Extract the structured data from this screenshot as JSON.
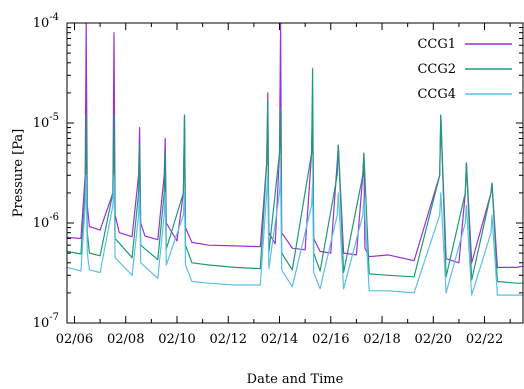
{
  "chart_data": {
    "type": "line",
    "title": "",
    "xlabel": "Date and Time",
    "ylabel": "Pressure [Pa]",
    "y_scale": "log",
    "ylim": [
      1e-07,
      0.0001
    ],
    "xlim": [
      "02/05 17:00",
      "02/23 12:00"
    ],
    "x_tick_labels": [
      "02/06",
      "02/08",
      "02/10",
      "02/12",
      "02/14",
      "02/16",
      "02/18",
      "02/20",
      "02/22"
    ],
    "y_tick_labels": [
      {
        "base": "10",
        "exp": "-7",
        "value": 1e-07
      },
      {
        "base": "10",
        "exp": "-6",
        "value": 1e-06
      },
      {
        "base": "10",
        "exp": "-5",
        "value": 1e-05
      },
      {
        "base": "10",
        "exp": "-4",
        "value": 0.0001
      }
    ],
    "legend": "top-right",
    "grid": false,
    "series": [
      {
        "name": "CCG1",
        "color": "#9b30d9",
        "x": [
          "02/05 17:00",
          "02/06 06:00",
          "02/06 10:00",
          "02/06 11:00",
          "02/06 12:00",
          "02/06 14:00",
          "02/07 00:00",
          "02/07 12:00",
          "02/07 13:00",
          "02/07 14:00",
          "02/07 18:00",
          "02/08 06:00",
          "02/08 12:00",
          "02/08 13:00",
          "02/08 14:00",
          "02/08 18:00",
          "02/09 06:00",
          "02/09 12:00",
          "02/09 13:00",
          "02/09 14:00",
          "02/10 00:00",
          "02/10 06:00",
          "02/10 07:00",
          "02/10 08:00",
          "02/10 14:00",
          "02/11 06:00",
          "02/12 06:00",
          "02/13 06:00",
          "02/13 12:00",
          "02/13 13:00",
          "02/13 14:00",
          "02/13 20:00",
          "02/14 00:00",
          "02/14 01:00",
          "02/14 02:00",
          "02/14 12:00",
          "02/15 00:00",
          "02/15 06:00",
          "02/15 07:00",
          "02/15 08:00",
          "02/15 14:00",
          "02/16 00:00",
          "02/16 06:00",
          "02/16 07:00",
          "02/16 12:00",
          "02/17 00:00",
          "02/17 06:00",
          "02/17 07:00",
          "02/17 08:00",
          "02/17 12:00",
          "02/18 06:00",
          "02/19 06:00",
          "02/20 06:00",
          "02/20 07:00",
          "02/20 12:00",
          "02/21 00:00",
          "02/21 06:00",
          "02/21 07:00",
          "02/21 12:00",
          "02/22 06:00",
          "02/22 07:00",
          "02/22 12:00",
          "02/23 06:00",
          "02/23 12:00"
        ],
        "values": [
          7.2e-07,
          7e-07,
          3e-06,
          0.0001,
          1.5e-06,
          9.2e-07,
          8.5e-07,
          2e-06,
          8e-05,
          1.2e-06,
          8e-07,
          7.3e-07,
          3e-06,
          9e-06,
          1e-06,
          7.4e-07,
          6.8e-07,
          3e-06,
          7e-06,
          1e-06,
          6.6e-07,
          2e-06,
          1.2e-05,
          9e-07,
          6.4e-07,
          6e-07,
          5.9e-07,
          5.8e-07,
          4e-06,
          2e-05,
          8e-07,
          6.2e-07,
          5e-06,
          0.0001,
          8e-07,
          5.6e-07,
          5.4e-07,
          5e-06,
          1.4e-05,
          7e-07,
          5.2e-07,
          5e-07,
          4e-06,
          6e-06,
          5e-07,
          4.8e-07,
          3e-06,
          5e-06,
          5.6e-07,
          4.6e-07,
          4.8e-07,
          4.2e-07,
          3e-06,
          1.2e-05,
          4.4e-07,
          4e-07,
          2e-06,
          4e-06,
          4e-07,
          2e-06,
          2.5e-06,
          3.6e-07,
          3.6e-07,
          3.7e-07
        ]
      },
      {
        "name": "CCG2",
        "color": "#1e9a78",
        "x": [
          "02/05 17:00",
          "02/06 06:00",
          "02/06 10:00",
          "02/06 11:00",
          "02/06 12:00",
          "02/06 14:00",
          "02/07 00:00",
          "02/07 12:00",
          "02/07 13:00",
          "02/07 14:00",
          "02/08 06:00",
          "02/08 12:00",
          "02/08 13:00",
          "02/08 14:00",
          "02/09 06:00",
          "02/09 12:00",
          "02/09 13:00",
          "02/09 14:00",
          "02/10 06:00",
          "02/10 07:00",
          "02/10 08:00",
          "02/10 14:00",
          "02/11 06:00",
          "02/12 06:00",
          "02/13 06:00",
          "02/13 12:00",
          "02/13 13:00",
          "02/13 14:00",
          "02/14 00:00",
          "02/14 01:00",
          "02/14 02:00",
          "02/14 12:00",
          "02/15 06:00",
          "02/15 07:00",
          "02/15 08:00",
          "02/15 14:00",
          "02/16 06:00",
          "02/16 07:00",
          "02/16 12:00",
          "02/17 06:00",
          "02/17 07:00",
          "02/17 12:00",
          "02/18 06:00",
          "02/19 06:00",
          "02/20 06:00",
          "02/20 07:00",
          "02/20 12:00",
          "02/21 06:00",
          "02/21 07:00",
          "02/21 12:00",
          "02/22 06:00",
          "02/22 07:00",
          "02/22 12:00",
          "02/23 06:00",
          "02/23 12:00"
        ],
        "values": [
          5.2e-07,
          4.9e-07,
          2e-06,
          1.2e-05,
          8e-07,
          5e-07,
          4.7e-07,
          2e-06,
          1.2e-05,
          7e-07,
          4.5e-07,
          2e-06,
          6e-06,
          6e-07,
          4.3e-07,
          2e-06,
          5e-06,
          5.5e-07,
          2e-06,
          1.2e-05,
          6e-07,
          4e-07,
          3.8e-07,
          3.6e-07,
          3.5e-07,
          4e-06,
          1.7e-05,
          5e-07,
          5e-06,
          1.4e-05,
          5e-07,
          3.4e-07,
          5e-06,
          3.5e-05,
          5e-07,
          3.3e-07,
          3e-06,
          6e-06,
          3.2e-07,
          3e-06,
          5e-06,
          3.1e-07,
          3e-07,
          2.9e-07,
          3e-06,
          1.2e-05,
          2.9e-07,
          2e-06,
          4e-06,
          2.7e-07,
          2e-06,
          2.5e-06,
          2.6e-07,
          2.5e-07,
          2.5e-07
        ]
      },
      {
        "name": "CCG4",
        "color": "#5bbfe8",
        "x": [
          "02/05 17:00",
          "02/06 06:00",
          "02/06 10:00",
          "02/06 11:00",
          "02/06 12:00",
          "02/06 14:00",
          "02/07 00:00",
          "02/07 12:00",
          "02/07 13:00",
          "02/07 14:00",
          "02/08 06:00",
          "02/08 12:00",
          "02/08 13:00",
          "02/08 14:00",
          "02/09 06:00",
          "02/09 12:00",
          "02/09 13:00",
          "02/09 14:00",
          "02/10 06:00",
          "02/10 07:00",
          "02/10 08:00",
          "02/10 14:00",
          "02/11 06:00",
          "02/12 06:00",
          "02/13 06:00",
          "02/13 12:00",
          "02/13 13:00",
          "02/13 14:00",
          "02/14 00:00",
          "02/14 01:00",
          "02/14 02:00",
          "02/14 12:00",
          "02/15 06:00",
          "02/15 07:00",
          "02/15 08:00",
          "02/15 14:00",
          "02/16 06:00",
          "02/16 07:00",
          "02/16 12:00",
          "02/17 06:00",
          "02/17 07:00",
          "02/17 12:00",
          "02/18 06:00",
          "02/19 06:00",
          "02/20 06:00",
          "02/20 07:00",
          "02/20 12:00",
          "02/21 06:00",
          "02/21 07:00",
          "02/21 12:00",
          "02/22 06:00",
          "02/22 07:00",
          "02/22 12:00",
          "02/23 06:00",
          "02/23 12:00"
        ],
        "values": [
          3.6e-07,
          3.3e-07,
          1.5e-06,
          3e-06,
          5e-07,
          3.4e-07,
          3.2e-07,
          1.5e-06,
          3e-06,
          4.5e-07,
          3e-07,
          1.2e-06,
          2e-06,
          4e-07,
          2.8e-07,
          1.2e-06,
          2e-06,
          3.8e-07,
          1.2e-06,
          2e-06,
          3.8e-07,
          2.6e-07,
          2.5e-07,
          2.4e-07,
          2.4e-07,
          2e-06,
          3e-06,
          3.5e-07,
          2e-06,
          3e-06,
          3.4e-07,
          2.3e-07,
          1.5e-06,
          2.5e-06,
          3.2e-07,
          2.2e-07,
          1.2e-06,
          2e-06,
          2.2e-07,
          1.2e-06,
          1.8e-06,
          2.1e-07,
          2.1e-07,
          2e-07,
          1.2e-06,
          2e-06,
          2e-07,
          1e-06,
          1.5e-06,
          1.9e-07,
          8e-07,
          1.2e-06,
          1.9e-07,
          1.9e-07,
          1.9e-07
        ]
      }
    ]
  }
}
